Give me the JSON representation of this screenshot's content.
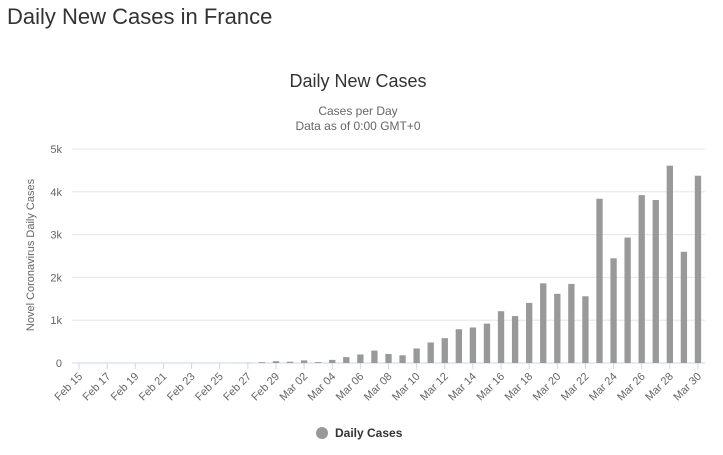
{
  "page": {
    "heading": "Daily New Cases in France"
  },
  "chart_data": {
    "type": "bar",
    "title": "Daily New Cases",
    "subtitle": [
      "Cases per Day",
      "Data as of 0:00 GMT+0"
    ],
    "xlabel": "",
    "ylabel": "Novel Coronavirus Daily Cases",
    "ylim": [
      0,
      5000
    ],
    "yticks": [
      0,
      1000,
      2000,
      3000,
      4000,
      5000
    ],
    "ytick_labels": [
      "0",
      "1k",
      "2k",
      "3k",
      "4k",
      "5k"
    ],
    "grid": true,
    "legend_position": "bottom-center",
    "categories": [
      "Feb 15",
      "Feb 16",
      "Feb 17",
      "Feb 18",
      "Feb 19",
      "Feb 20",
      "Feb 21",
      "Feb 22",
      "Feb 23",
      "Feb 24",
      "Feb 25",
      "Feb 26",
      "Feb 27",
      "Feb 28",
      "Feb 29",
      "Mar 01",
      "Mar 02",
      "Mar 03",
      "Mar 04",
      "Mar 05",
      "Mar 06",
      "Mar 07",
      "Mar 08",
      "Mar 09",
      "Mar 10",
      "Mar 11",
      "Mar 12",
      "Mar 13",
      "Mar 14",
      "Mar 15",
      "Mar 16",
      "Mar 17",
      "Mar 18",
      "Mar 19",
      "Mar 20",
      "Mar 21",
      "Mar 22",
      "Mar 23",
      "Mar 24",
      "Mar 25",
      "Mar 26",
      "Mar 27",
      "Mar 28",
      "Mar 29",
      "Mar 30"
    ],
    "xtick_labels": [
      "Feb 15",
      "Feb 17",
      "Feb 19",
      "Feb 21",
      "Feb 23",
      "Feb 25",
      "Feb 27",
      "Feb 29",
      "Mar 02",
      "Mar 04",
      "Mar 06",
      "Mar 08",
      "Mar 10",
      "Mar 12",
      "Mar 14",
      "Mar 16",
      "Mar 18",
      "Mar 20",
      "Mar 22",
      "Mar 24",
      "Mar 26",
      "Mar 28",
      "Mar 30"
    ],
    "series": [
      {
        "name": "Daily Cases",
        "color": "#999999",
        "values": [
          0,
          0,
          0,
          0,
          0,
          0,
          0,
          0,
          0,
          0,
          0,
          2,
          4,
          20,
          43,
          30,
          61,
          21,
          73,
          138,
          200,
          290,
          210,
          180,
          340,
          480,
          580,
          790,
          830,
          920,
          1210,
          1097,
          1404,
          1861,
          1617,
          1847,
          1559,
          3838,
          2446,
          2931,
          3922,
          3809,
          4611,
          2599,
          4376
        ]
      }
    ]
  },
  "colors": {
    "bar": "#999999",
    "grid": "#e6e6e6",
    "axis_line": "#ccd6eb"
  }
}
